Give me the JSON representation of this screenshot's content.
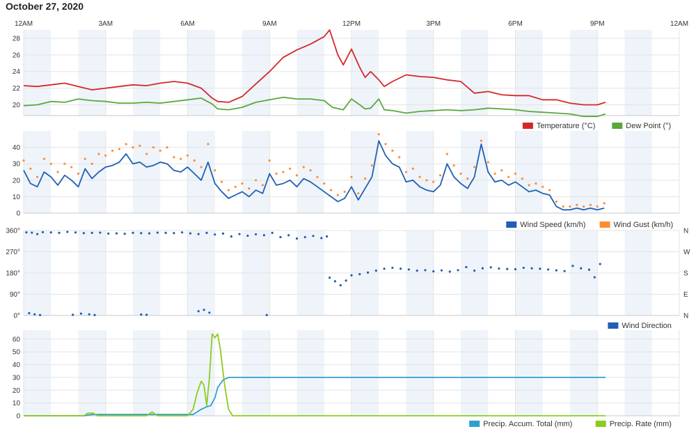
{
  "page_title": "October 27, 2020",
  "time_axis": {
    "ticks": [
      "12AM",
      "3AM",
      "6AM",
      "9AM",
      "12PM",
      "3PM",
      "6PM",
      "9PM",
      "12AM"
    ],
    "range_hours": [
      0,
      24
    ]
  },
  "colors": {
    "temperature": "#d62728",
    "dew_point": "#5aa83c",
    "wind_speed": "#1f5fb4",
    "wind_gust": "#ff8c33",
    "wind_direction": "#1f5fb4",
    "precip_accum": "#2e9fd0",
    "precip_rate": "#8ccb1f",
    "band": "#eef4fa",
    "grid": "#e3e3e3"
  },
  "chart_data": [
    {
      "id": "temperature-dewpoint",
      "type": "line",
      "grid": true,
      "ylim": [
        18.7,
        29
      ],
      "yticks": [
        "20",
        "22",
        "24",
        "26",
        "28"
      ],
      "legend_position": "bottom-right",
      "series": [
        {
          "name": "Temperature (°C)",
          "color_key": "temperature",
          "x": [
            0,
            0.5,
            1,
            1.5,
            2,
            2.5,
            3,
            3.5,
            4,
            4.5,
            5,
            5.5,
            6,
            6.5,
            6.9,
            7.1,
            7.5,
            8,
            8.5,
            9,
            9.5,
            10,
            10.5,
            11,
            11.2,
            11.5,
            11.7,
            12,
            12.3,
            12.5,
            12.7,
            13,
            13.2,
            13.5,
            14,
            14.5,
            15,
            15.5,
            16,
            16.5,
            17,
            17.5,
            18,
            18.5,
            19,
            19.5,
            20,
            20.5,
            21,
            21.3
          ],
          "y": [
            22.3,
            22.2,
            22.4,
            22.6,
            22.2,
            21.8,
            22.0,
            22.2,
            22.4,
            22.3,
            22.6,
            22.8,
            22.6,
            22.0,
            20.8,
            20.4,
            20.3,
            21.0,
            22.5,
            24.0,
            25.7,
            26.6,
            27.3,
            28.2,
            29.0,
            26.0,
            24.8,
            26.7,
            24.5,
            23.3,
            24.0,
            23.0,
            22.2,
            22.8,
            23.6,
            23.4,
            23.3,
            23.0,
            22.8,
            21.4,
            21.6,
            21.2,
            21.1,
            21.1,
            20.6,
            20.6,
            20.2,
            20.0,
            20.0,
            20.3
          ]
        },
        {
          "name": "Dew Point (°)",
          "color_key": "dew_point",
          "x": [
            0,
            0.5,
            1,
            1.5,
            2,
            2.5,
            3,
            3.5,
            4,
            4.5,
            5,
            5.5,
            6,
            6.5,
            6.9,
            7.1,
            7.5,
            8,
            8.5,
            9,
            9.5,
            10,
            10.5,
            11,
            11.3,
            11.7,
            12,
            12.3,
            12.5,
            12.7,
            13,
            13.2,
            13.5,
            14,
            14.5,
            15,
            15.5,
            16,
            16.5,
            17,
            17.5,
            18,
            18.5,
            19,
            19.5,
            20,
            20.5,
            21,
            21.3
          ],
          "y": [
            19.9,
            20.0,
            20.4,
            20.3,
            20.7,
            20.5,
            20.4,
            20.2,
            20.2,
            20.3,
            20.2,
            20.4,
            20.6,
            20.8,
            20.1,
            19.5,
            19.4,
            19.7,
            20.3,
            20.6,
            20.9,
            20.7,
            20.7,
            20.5,
            19.7,
            19.4,
            20.7,
            20.0,
            19.5,
            19.6,
            20.7,
            19.4,
            19.3,
            19.0,
            19.2,
            19.3,
            19.4,
            19.3,
            19.4,
            19.6,
            19.5,
            19.4,
            19.2,
            19.1,
            19.0,
            18.9,
            18.6,
            18.6,
            18.9
          ]
        }
      ]
    },
    {
      "id": "wind-speed-gust",
      "type": "line",
      "grid": true,
      "ylim": [
        0,
        50
      ],
      "yticks": [
        "0",
        "10",
        "20",
        "30",
        "40"
      ],
      "legend_position": "bottom-right",
      "series": [
        {
          "name": "Wind Speed (km/h)",
          "color_key": "wind_speed",
          "x": [
            0,
            0.25,
            0.5,
            0.75,
            1,
            1.25,
            1.5,
            1.75,
            2,
            2.25,
            2.5,
            2.75,
            3,
            3.25,
            3.5,
            3.75,
            4,
            4.25,
            4.5,
            4.75,
            5,
            5.25,
            5.5,
            5.75,
            6,
            6.25,
            6.5,
            6.75,
            7,
            7.25,
            7.5,
            7.75,
            8,
            8.25,
            8.5,
            8.75,
            9,
            9.25,
            9.5,
            9.75,
            10,
            10.25,
            10.5,
            10.75,
            11,
            11.25,
            11.5,
            11.75,
            12,
            12.25,
            12.5,
            12.75,
            13,
            13.25,
            13.5,
            13.75,
            14,
            14.25,
            14.5,
            14.75,
            15,
            15.25,
            15.5,
            15.75,
            16,
            16.25,
            16.5,
            16.75,
            17,
            17.25,
            17.5,
            17.75,
            18,
            18.25,
            18.5,
            18.75,
            19,
            19.25,
            19.5,
            19.75,
            20,
            20.25,
            20.5,
            20.75,
            21,
            21.25
          ],
          "y": [
            26,
            18,
            16,
            25,
            22,
            17,
            23,
            20,
            16,
            27,
            21,
            25,
            28,
            29,
            31,
            36,
            30,
            31,
            28,
            29,
            31,
            30,
            26,
            25,
            28,
            24,
            20,
            31,
            18,
            13,
            9,
            11,
            13,
            10,
            14,
            12,
            24,
            17,
            18,
            20,
            16,
            21,
            19,
            16,
            13,
            10,
            7,
            9,
            16,
            8,
            15,
            22,
            44,
            35,
            30,
            28,
            19,
            20,
            16,
            14,
            13,
            17,
            30,
            22,
            18,
            15,
            22,
            42,
            25,
            19,
            20,
            17,
            19,
            16,
            13,
            14,
            12,
            11,
            4,
            2,
            2,
            3,
            2,
            3,
            2,
            3
          ]
        },
        {
          "name": "Wind Gust (km/h)",
          "color_key": "wind_gust",
          "x": [
            0,
            0.25,
            0.5,
            0.75,
            1,
            1.25,
            1.5,
            1.75,
            2,
            2.25,
            2.5,
            2.75,
            3,
            3.25,
            3.5,
            3.75,
            4,
            4.25,
            4.5,
            4.75,
            5,
            5.25,
            5.5,
            5.75,
            6,
            6.25,
            6.5,
            6.75,
            7,
            7.25,
            7.5,
            7.75,
            8,
            8.25,
            8.5,
            8.75,
            9,
            9.25,
            9.5,
            9.75,
            10,
            10.25,
            10.5,
            10.75,
            11,
            11.25,
            11.5,
            11.75,
            12,
            12.25,
            12.5,
            12.75,
            13,
            13.25,
            13.5,
            13.75,
            14,
            14.25,
            14.5,
            14.75,
            15,
            15.25,
            15.5,
            15.75,
            16,
            16.25,
            16.5,
            16.75,
            17,
            17.25,
            17.5,
            17.75,
            18,
            18.25,
            18.5,
            18.75,
            19,
            19.25,
            19.5,
            19.75,
            20,
            20.25,
            20.5,
            20.75,
            21,
            21.25
          ],
          "y": [
            32,
            27,
            22,
            33,
            30,
            25,
            30,
            28,
            24,
            33,
            30,
            36,
            35,
            38,
            39,
            42,
            40,
            41,
            36,
            40,
            38,
            40,
            34,
            33,
            35,
            32,
            28,
            42,
            26,
            19,
            14,
            16,
            18,
            15,
            20,
            17,
            32,
            24,
            25,
            27,
            23,
            28,
            26,
            22,
            18,
            14,
            11,
            13,
            22,
            12,
            21,
            29,
            48,
            42,
            38,
            34,
            25,
            27,
            22,
            20,
            19,
            23,
            36,
            29,
            24,
            21,
            28,
            44,
            31,
            24,
            26,
            22,
            24,
            21,
            17,
            18,
            16,
            14,
            7,
            4,
            4,
            5,
            4,
            5,
            4,
            6
          ]
        }
      ]
    },
    {
      "id": "wind-direction",
      "type": "scatter",
      "grid": true,
      "ylim": [
        0,
        360
      ],
      "yticks": [
        "0°",
        "90°",
        "180°",
        "270°",
        "360°"
      ],
      "right_ticks": [
        "N",
        "E",
        "S",
        "W",
        "N"
      ],
      "legend_position": "bottom-right",
      "series": [
        {
          "name": "Wind Direction",
          "color_key": "wind_direction",
          "x": [
            0.1,
            0.3,
            0.5,
            0.7,
            1.0,
            1.3,
            1.6,
            1.9,
            2.2,
            2.5,
            2.8,
            3.1,
            3.4,
            3.7,
            4.0,
            4.3,
            4.6,
            4.9,
            5.2,
            5.5,
            5.8,
            6.1,
            6.4,
            6.7,
            7.0,
            7.3,
            7.6,
            7.9,
            8.2,
            8.5,
            8.8,
            9.1,
            9.4,
            9.7,
            10.0,
            10.3,
            10.6,
            10.9,
            11.1,
            0.2,
            0.4,
            0.6,
            1.8,
            2.1,
            2.4,
            2.6,
            4.3,
            4.5,
            6.4,
            6.6,
            6.8,
            8.9,
            11.2,
            11.4,
            11.6,
            11.8,
            12.0,
            12.3,
            12.6,
            12.9,
            13.2,
            13.5,
            13.8,
            14.1,
            14.4,
            14.7,
            15.0,
            15.3,
            15.6,
            15.9,
            16.2,
            16.5,
            16.8,
            17.1,
            17.4,
            17.7,
            18.0,
            18.3,
            18.6,
            18.9,
            19.2,
            19.5,
            19.8,
            20.1,
            20.4,
            20.7,
            20.9,
            21.1
          ],
          "y": [
            352,
            351,
            345,
            353,
            352,
            350,
            354,
            352,
            349,
            350,
            351,
            347,
            348,
            346,
            350,
            349,
            348,
            351,
            350,
            349,
            352,
            348,
            345,
            350,
            343,
            347,
            335,
            345,
            338,
            344,
            340,
            350,
            332,
            340,
            326,
            332,
            337,
            328,
            335,
            10,
            5,
            2,
            3,
            8,
            5,
            2,
            4,
            3,
            18,
            24,
            12,
            2,
            160,
            145,
            128,
            148,
            170,
            175,
            182,
            190,
            198,
            202,
            198,
            195,
            190,
            192,
            187,
            191,
            186,
            192,
            205,
            190,
            200,
            204,
            199,
            197,
            196,
            202,
            200,
            198,
            195,
            191,
            188,
            210,
            200,
            194,
            162,
            218
          ]
        }
      ]
    },
    {
      "id": "precipitation",
      "type": "line",
      "grid": true,
      "ylim": [
        0,
        67
      ],
      "yticks": [
        "0",
        "10",
        "20",
        "30",
        "40",
        "50",
        "60"
      ],
      "legend_position": "bottom-right",
      "series": [
        {
          "name": "Precip. Accum. Total (mm)",
          "color_key": "precip_accum",
          "x": [
            0,
            2.2,
            2.5,
            4.5,
            4.8,
            6.2,
            6.5,
            6.7,
            6.85,
            7.0,
            7.1,
            7.3,
            7.5,
            21.3
          ],
          "y": [
            0,
            0,
            1,
            1,
            1,
            1,
            5,
            7,
            8,
            14,
            22,
            28,
            30,
            30
          ]
        },
        {
          "name": "Precip. Rate (mm)",
          "color_key": "precip_rate",
          "x": [
            0,
            2.2,
            2.35,
            2.55,
            2.7,
            4.5,
            4.7,
            4.9,
            5.1,
            6.0,
            6.2,
            6.35,
            6.5,
            6.6,
            6.7,
            6.8,
            6.9,
            7.0,
            7.1,
            7.2,
            7.35,
            7.5,
            7.65,
            21.3
          ],
          "y": [
            0,
            0,
            2,
            2,
            0,
            0,
            3,
            0,
            0,
            0,
            5,
            18,
            27,
            24,
            8,
            30,
            64,
            61,
            64,
            52,
            25,
            5,
            0,
            0
          ]
        }
      ]
    }
  ]
}
